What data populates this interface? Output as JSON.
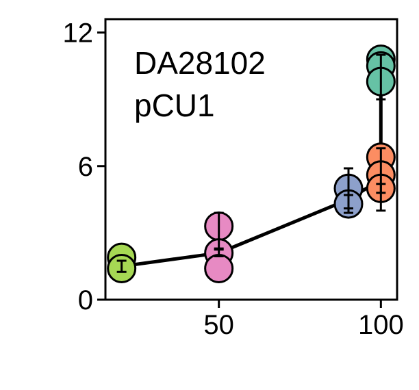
{
  "chart_data": {
    "type": "scatter",
    "title": "",
    "xlabel": "",
    "ylabel": "",
    "xlim": [
      15,
      105
    ],
    "ylim": [
      0,
      12.6
    ],
    "x_ticks": [
      50,
      100
    ],
    "y_ticks": [
      0,
      6,
      12
    ],
    "grid": false,
    "annotation": [
      "DA28102",
      "pCU1"
    ],
    "points": [
      {
        "x": 20,
        "y": 1.9,
        "color": "#a6d854"
      },
      {
        "x": 20,
        "y": 1.4,
        "color": "#a6d854"
      },
      {
        "x": 50,
        "y": 3.3,
        "color": "#e78ac3"
      },
      {
        "x": 50,
        "y": 2.1,
        "color": "#e78ac3"
      },
      {
        "x": 50,
        "y": 1.4,
        "color": "#e78ac3"
      },
      {
        "x": 90,
        "y": 5.0,
        "color": "#8da0cb"
      },
      {
        "x": 90,
        "y": 4.3,
        "color": "#8da0cb"
      },
      {
        "x": 100,
        "y": 6.4,
        "color": "#fc8d62"
      },
      {
        "x": 100,
        "y": 5.6,
        "color": "#fc8d62"
      },
      {
        "x": 100,
        "y": 5.0,
        "color": "#fc8d62"
      },
      {
        "x": 100,
        "y": 10.8,
        "color": "#66c2a5"
      },
      {
        "x": 100,
        "y": 10.5,
        "color": "#66c2a5"
      },
      {
        "x": 100,
        "y": 9.8,
        "color": "#66c2a5"
      }
    ],
    "mean_line": [
      {
        "x": 20,
        "y": 1.5
      },
      {
        "x": 50,
        "y": 2.1
      },
      {
        "x": 90,
        "y": 4.5
      },
      {
        "x": 100,
        "y": 5.4
      },
      {
        "x": 100,
        "y": 10.4
      }
    ],
    "error_bars": [
      {
        "x": 20,
        "y": 1.5,
        "low": 1.25,
        "high": 1.75
      },
      {
        "x": 50,
        "y": 2.1,
        "low": 1.95,
        "high": 2.25
      },
      {
        "x": 50,
        "y": 3.1,
        "low": 2.3,
        "high": 3.9
      },
      {
        "x": 90,
        "y": 4.9,
        "low": 3.9,
        "high": 5.9
      },
      {
        "x": 90,
        "y": 4.4,
        "low": 4.1,
        "high": 4.7
      },
      {
        "x": 100,
        "y": 5.4,
        "low": 4.0,
        "high": 6.8
      },
      {
        "x": 100,
        "y": 5.0,
        "low": 4.8,
        "high": 5.2
      },
      {
        "x": 100,
        "y": 10.4,
        "low": 9.0,
        "high": 11.0
      }
    ],
    "colors": {
      "axis": "#000000",
      "line": "#000000",
      "marker_edge": "#000000"
    }
  }
}
